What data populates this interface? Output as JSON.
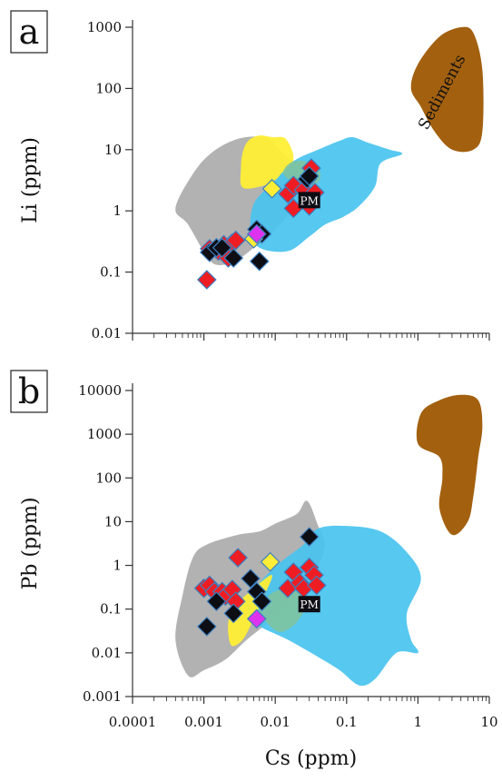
{
  "colors": {
    "red": "#ee1d23",
    "black": "#0d0d14",
    "yellow": "#ffee35",
    "magenta": "#dd33ee",
    "sediment": "#a3600f",
    "blue": "#49c3ef",
    "gray": "#aeaeae",
    "green": "#7ec3a0",
    "marker_edge": "#3b7fc0"
  },
  "chart_data": [
    {
      "type": "scatter",
      "panel_label": "a",
      "xlabel": "",
      "ylabel": "Li (ppm)",
      "xscale": "log",
      "yscale": "log",
      "xlim": [
        0.0001,
        10
      ],
      "ylim": [
        0.01,
        1000
      ],
      "yticks": [
        "0.01",
        "0.1",
        "1",
        "10",
        "100",
        "1000"
      ],
      "grid": false,
      "annotations": [
        {
          "text": "Sediments",
          "x": 2.5,
          "y": 80
        },
        {
          "text": "PM",
          "x": 0.03,
          "y": 1.5
        }
      ],
      "regions": [
        {
          "fill": "gray",
          "polygon": [
            [
              0.0011,
              0.18
            ],
            [
              0.0006,
              0.6
            ],
            [
              0.0004,
              1.1
            ],
            [
              0.0007,
              4
            ],
            [
              0.0013,
              9
            ],
            [
              0.003,
              15
            ],
            [
              0.007,
              16
            ],
            [
              0.01,
              12
            ],
            [
              0.014,
              8
            ],
            [
              0.02,
              6
            ],
            [
              0.03,
              4
            ],
            [
              0.02,
              1.3
            ],
            [
              0.01,
              0.5
            ],
            [
              0.006,
              0.3
            ],
            [
              0.003,
              0.16
            ],
            [
              0.0016,
              0.13
            ]
          ]
        },
        {
          "fill": "blue",
          "polygon": [
            [
              0.006,
              0.25
            ],
            [
              0.0045,
              0.5
            ],
            [
              0.005,
              1.3
            ],
            [
              0.008,
              2.5
            ],
            [
              0.012,
              4.5
            ],
            [
              0.02,
              7
            ],
            [
              0.04,
              10
            ],
            [
              0.08,
              14
            ],
            [
              0.12,
              16
            ],
            [
              0.2,
              13
            ],
            [
              0.4,
              10
            ],
            [
              0.6,
              8.5
            ],
            [
              0.3,
              6
            ],
            [
              0.25,
              2.5
            ],
            [
              0.15,
              1.2
            ],
            [
              0.09,
              0.8
            ],
            [
              0.05,
              0.6
            ],
            [
              0.03,
              0.38
            ],
            [
              0.015,
              0.22
            ]
          ]
        },
        {
          "fill": "yellow",
          "polygon": [
            [
              0.0035,
              2.4
            ],
            [
              0.0033,
              5
            ],
            [
              0.0035,
              9
            ],
            [
              0.0042,
              14
            ],
            [
              0.006,
              17
            ],
            [
              0.009,
              16
            ],
            [
              0.014,
              15
            ],
            [
              0.018,
              7
            ],
            [
              0.012,
              4
            ],
            [
              0.01,
              3.2
            ],
            [
              0.007,
              2.6
            ]
          ]
        },
        {
          "fill": "green",
          "polygon": [
            [
              0.013,
              4
            ],
            [
              0.016,
              6
            ],
            [
              0.025,
              6.5
            ],
            [
              0.04,
              5
            ],
            [
              0.042,
              3.2
            ],
            [
              0.03,
              2.6
            ],
            [
              0.02,
              2.8
            ]
          ]
        },
        {
          "fill": "sediment",
          "polygon": [
            [
              1.1,
              50
            ],
            [
              0.8,
              100
            ],
            [
              1.0,
              250
            ],
            [
              2,
              700
            ],
            [
              4,
              1000
            ],
            [
              6,
              800
            ],
            [
              8,
              200
            ],
            [
              8,
              20
            ],
            [
              6,
              10
            ],
            [
              3,
              10
            ],
            [
              1.7,
              20
            ]
          ]
        }
      ],
      "series": [
        {
          "fill": "red",
          "points": [
            [
              0.0011,
              0.075
            ],
            [
              0.0012,
              0.24
            ],
            [
              0.0016,
              0.22
            ],
            [
              0.0019,
              0.28
            ],
            [
              0.0022,
              0.2
            ],
            [
              0.0025,
              0.3
            ],
            [
              0.0028,
              0.33
            ],
            [
              0.0022,
              0.17
            ],
            [
              0.015,
              1.9
            ],
            [
              0.018,
              2.6
            ],
            [
              0.018,
              1.1
            ],
            [
              0.025,
              2.2
            ],
            [
              0.032,
              5
            ],
            [
              0.03,
              1.2
            ],
            [
              0.036,
              2
            ]
          ]
        },
        {
          "fill": "black",
          "points": [
            [
              0.0012,
              0.21
            ],
            [
              0.0015,
              0.25
            ],
            [
              0.0018,
              0.25
            ],
            [
              0.0026,
              0.17
            ],
            [
              0.0055,
              0.5
            ],
            [
              0.006,
              0.15
            ],
            [
              0.0065,
              0.42
            ],
            [
              0.028,
              3.3
            ],
            [
              0.03,
              3.7
            ]
          ]
        },
        {
          "fill": "yellow",
          "points": [
            [
              0.009,
              2.3
            ],
            [
              0.005,
              0.35
            ]
          ]
        },
        {
          "fill": "magenta",
          "points": [
            [
              0.0055,
              0.42
            ]
          ]
        }
      ]
    },
    {
      "type": "scatter",
      "panel_label": "b",
      "xlabel": "Cs (ppm)",
      "ylabel": "Pb (ppm)",
      "xscale": "log",
      "yscale": "log",
      "xlim": [
        0.0001,
        10
      ],
      "ylim": [
        0.001,
        10000
      ],
      "xticks": [
        "0.0001",
        "0.001",
        "0.01",
        "0.1",
        "1",
        "10"
      ],
      "yticks": [
        "0.001",
        "0.01",
        "0.1",
        "1",
        "10",
        "100",
        "1000",
        "10000"
      ],
      "grid": false,
      "annotations": [
        {
          "text": "PM",
          "x": 0.03,
          "y": 0.13
        }
      ],
      "regions": [
        {
          "fill": "gray",
          "polygon": [
            [
              0.0006,
              0.003
            ],
            [
              0.0004,
              0.02
            ],
            [
              0.0005,
              0.2
            ],
            [
              0.0007,
              1.5
            ],
            [
              0.0011,
              3
            ],
            [
              0.003,
              5
            ],
            [
              0.006,
              6
            ],
            [
              0.01,
              9
            ],
            [
              0.02,
              15
            ],
            [
              0.028,
              30
            ],
            [
              0.04,
              8
            ],
            [
              0.05,
              3
            ],
            [
              0.04,
              1
            ],
            [
              0.02,
              0.2
            ],
            [
              0.008,
              0.05
            ],
            [
              0.004,
              0.02
            ],
            [
              0.002,
              0.007
            ],
            [
              0.001,
              0.004
            ]
          ]
        },
        {
          "fill": "blue",
          "polygon": [
            [
              0.005,
              0.05
            ],
            [
              0.004,
              0.15
            ],
            [
              0.006,
              0.4
            ],
            [
              0.012,
              1.2
            ],
            [
              0.025,
              3
            ],
            [
              0.04,
              7
            ],
            [
              0.1,
              8
            ],
            [
              0.3,
              6
            ],
            [
              0.7,
              2
            ],
            [
              1.1,
              0.5
            ],
            [
              0.7,
              0.08
            ],
            [
              0.8,
              0.02
            ],
            [
              1,
              0.01
            ],
            [
              0.5,
              0.01
            ],
            [
              0.25,
              0.0025
            ],
            [
              0.15,
              0.0018
            ],
            [
              0.08,
              0.004
            ],
            [
              0.04,
              0.008
            ],
            [
              0.015,
              0.02
            ]
          ]
        },
        {
          "fill": "yellow",
          "polygon": [
            [
              0.0024,
              0.015
            ],
            [
              0.0022,
              0.05
            ],
            [
              0.0028,
              0.12
            ],
            [
              0.005,
              0.3
            ],
            [
              0.009,
              0.6
            ],
            [
              0.007,
              0.2
            ],
            [
              0.005,
              0.06
            ],
            [
              0.0035,
              0.02
            ]
          ]
        },
        {
          "fill": "green",
          "polygon": [
            [
              0.006,
              0.1
            ],
            [
              0.008,
              0.2
            ],
            [
              0.012,
              0.28
            ],
            [
              0.02,
              0.25
            ],
            [
              0.028,
              0.15
            ],
            [
              0.02,
              0.05
            ],
            [
              0.012,
              0.03
            ],
            [
              0.008,
              0.045
            ]
          ]
        },
        {
          "fill": "sediment",
          "polygon": [
            [
              2,
              300
            ],
            [
              1,
              600
            ],
            [
              1.1,
              3000
            ],
            [
              2,
              6000
            ],
            [
              4,
              8000
            ],
            [
              7,
              6000
            ],
            [
              8,
              1500
            ],
            [
              7,
              300
            ],
            [
              6,
              40
            ],
            [
              5,
              10
            ],
            [
              3,
              5
            ],
            [
              2,
              20
            ],
            [
              2.2,
              100
            ]
          ]
        }
      ],
      "series": [
        {
          "fill": "red",
          "points": [
            [
              0.001,
              0.3
            ],
            [
              0.0012,
              0.35
            ],
            [
              0.0014,
              0.25
            ],
            [
              0.0018,
              0.25
            ],
            [
              0.002,
              0.2
            ],
            [
              0.0025,
              0.28
            ],
            [
              0.0028,
              0.15
            ],
            [
              0.003,
              1.5
            ],
            [
              0.015,
              0.3
            ],
            [
              0.018,
              0.7
            ],
            [
              0.022,
              0.4
            ],
            [
              0.025,
              0.3
            ],
            [
              0.03,
              0.9
            ],
            [
              0.035,
              0.6
            ],
            [
              0.038,
              0.35
            ]
          ]
        },
        {
          "fill": "black",
          "points": [
            [
              0.0011,
              0.04
            ],
            [
              0.0015,
              0.15
            ],
            [
              0.0026,
              0.08
            ],
            [
              0.0045,
              0.5
            ],
            [
              0.0055,
              0.25
            ],
            [
              0.0065,
              0.15
            ],
            [
              0.03,
              4.5
            ]
          ]
        },
        {
          "fill": "yellow",
          "points": [
            [
              0.0085,
              1.2
            ]
          ]
        },
        {
          "fill": "magenta",
          "points": [
            [
              0.0055,
              0.06
            ]
          ]
        }
      ]
    }
  ]
}
